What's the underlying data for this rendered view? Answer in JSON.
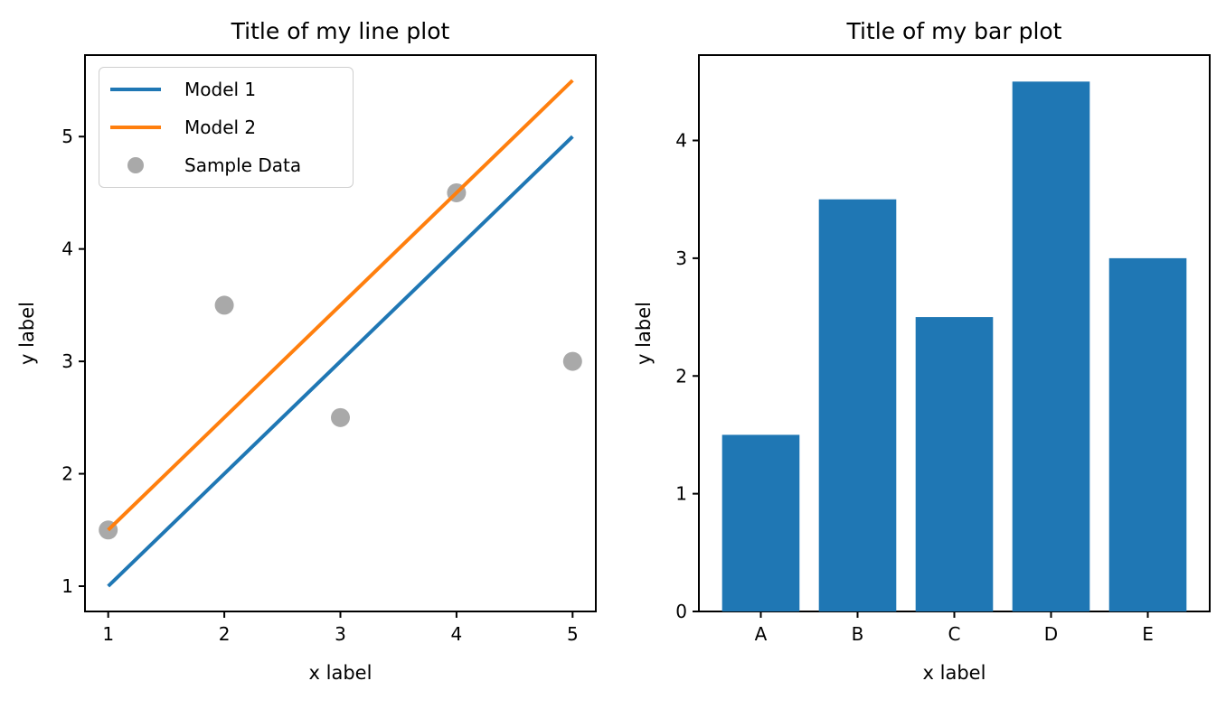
{
  "figure": {
    "background": "#ffffff",
    "text_color": "#000000",
    "spine_color": "#000000"
  },
  "chart_data": [
    {
      "type": "line",
      "title": "Title of my line plot",
      "xlabel": "x label",
      "ylabel": "y label",
      "xlim": [
        0.8,
        5.2
      ],
      "ylim": [
        0.775,
        5.725
      ],
      "xticks": [
        1,
        2,
        3,
        4,
        5
      ],
      "yticks": [
        1,
        2,
        3,
        4,
        5
      ],
      "grid": false,
      "legend_position": "upper left",
      "series": [
        {
          "name": "Model 1",
          "kind": "line",
          "color": "#1f77b4",
          "x": [
            1,
            5
          ],
          "y": [
            1,
            5
          ]
        },
        {
          "name": "Model 2",
          "kind": "line",
          "color": "#ff7f0e",
          "x": [
            1,
            5
          ],
          "y": [
            1.5,
            5.5
          ]
        },
        {
          "name": "Sample Data",
          "kind": "scatter",
          "color": "#a9a9a9",
          "x": [
            1,
            2,
            3,
            4,
            5
          ],
          "y": [
            1.5,
            3.5,
            2.5,
            4.5,
            3.0
          ]
        }
      ]
    },
    {
      "type": "bar",
      "title": "Title of my bar plot",
      "xlabel": "x label",
      "ylabel": "y label",
      "categories": [
        "A",
        "B",
        "C",
        "D",
        "E"
      ],
      "values": [
        1.5,
        3.5,
        2.5,
        4.5,
        3.0
      ],
      "bar_color": "#1f77b4",
      "bar_width": 0.8,
      "xlim": [
        -0.64,
        4.64
      ],
      "ylim": [
        0,
        4.725
      ],
      "yticks": [
        0,
        1,
        2,
        3,
        4
      ],
      "grid": false
    }
  ]
}
